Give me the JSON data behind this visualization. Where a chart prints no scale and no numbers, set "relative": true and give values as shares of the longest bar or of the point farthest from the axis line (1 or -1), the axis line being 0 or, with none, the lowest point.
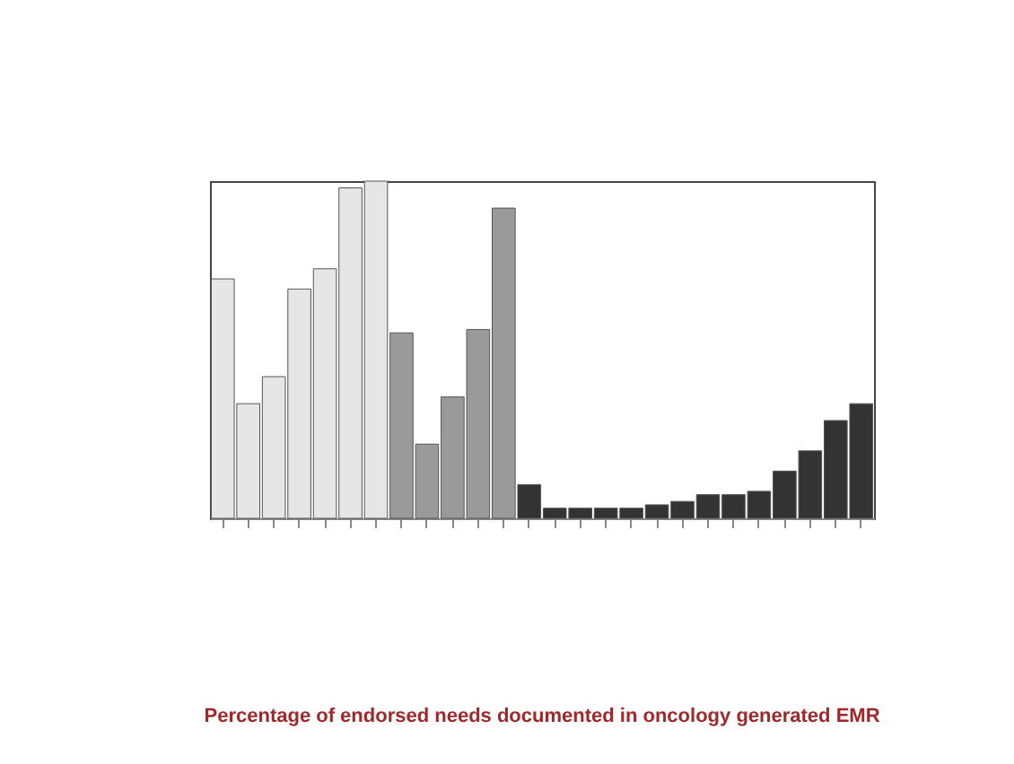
{
  "chart_data": {
    "type": "bar",
    "title": "Percentage of endorsed needs documented in oncology generated EMR",
    "relative": true,
    "categories": [
      null,
      null,
      null,
      null,
      null,
      null,
      null,
      null,
      null,
      null,
      null,
      null,
      null,
      null,
      null,
      null,
      null,
      null,
      null,
      null,
      null,
      null,
      null,
      null,
      null,
      null
    ],
    "values": [
      0.71,
      0.34,
      0.42,
      0.68,
      0.74,
      0.98,
      1,
      0.55,
      0.22,
      0.36,
      0.56,
      0.92,
      0.1,
      0.03,
      0.03,
      0.03,
      0.03,
      0.04,
      0.05,
      0.07,
      0.07,
      0.08,
      0.14,
      0.2,
      0.29,
      0.34
    ],
    "colors": [
      "#e6e6e6",
      "#e6e6e6",
      "#e6e6e6",
      "#e6e6e6",
      "#e6e6e6",
      "#e6e6e6",
      "#e6e6e6",
      "#9a9a9a",
      "#9a9a9a",
      "#9a9a9a",
      "#9a9a9a",
      "#9a9a9a",
      "#333333",
      "#333333",
      "#333333",
      "#333333",
      "#333333",
      "#333333",
      "#333333",
      "#333333",
      "#333333",
      "#333333",
      "#333333",
      "#333333",
      "#333333",
      "#333333"
    ]
  }
}
